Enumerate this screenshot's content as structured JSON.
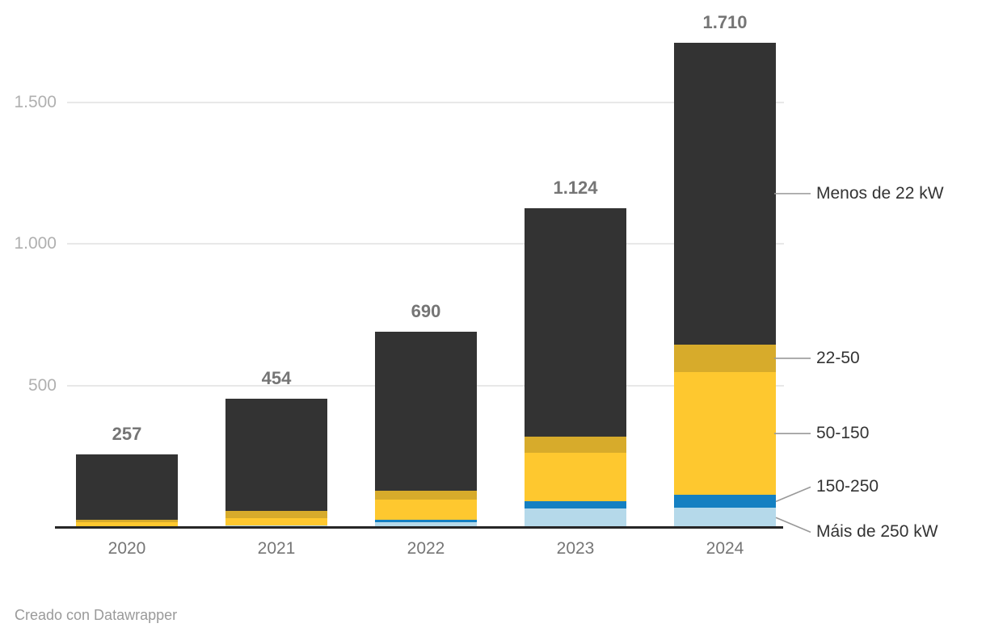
{
  "footer": {
    "credit": "Creado con Datawrapper"
  },
  "chart_data": {
    "type": "bar",
    "stacked": true,
    "title": "",
    "categories": [
      "2020",
      "2021",
      "2022",
      "2023",
      "2024"
    ],
    "totals": [
      257,
      454,
      690,
      1124,
      1710
    ],
    "totals_display": [
      "257",
      "454",
      "690",
      "1.124",
      "1.710"
    ],
    "series": [
      {
        "name": "Menos de 22 kW",
        "color": "#333333",
        "values": [
          232,
          398,
          561,
          804,
          1066
        ]
      },
      {
        "name": "22-50",
        "color": "#d7ab2b",
        "values": [
          9,
          25,
          31,
          59,
          97
        ]
      },
      {
        "name": "50-150",
        "color": "#fec82f",
        "values": [
          16,
          24,
          71,
          171,
          434
        ]
      },
      {
        "name": "150-250",
        "color": "#1480c2",
        "values": [
          0,
          0,
          9,
          25,
          46
        ]
      },
      {
        "name": "Máis de 250 kW",
        "color": "#b5d9ea",
        "values": [
          0,
          7,
          18,
          65,
          67
        ]
      }
    ],
    "y_axis": {
      "range": [
        0,
        1750
      ],
      "grid": true,
      "ticks": [
        {
          "value": 500,
          "label": "500"
        },
        {
          "value": 1000,
          "label": "1.000"
        },
        {
          "value": 1500,
          "label": "1.500"
        }
      ]
    },
    "legend_position": "right",
    "colors": {
      "grid": "#e8e8e8",
      "axis_line": "#262626",
      "total_label": "#757575",
      "tick_label": "#b0b0b0",
      "x_label": "#767676",
      "legend_label": "#333333",
      "leader_line": "#999999"
    }
  }
}
